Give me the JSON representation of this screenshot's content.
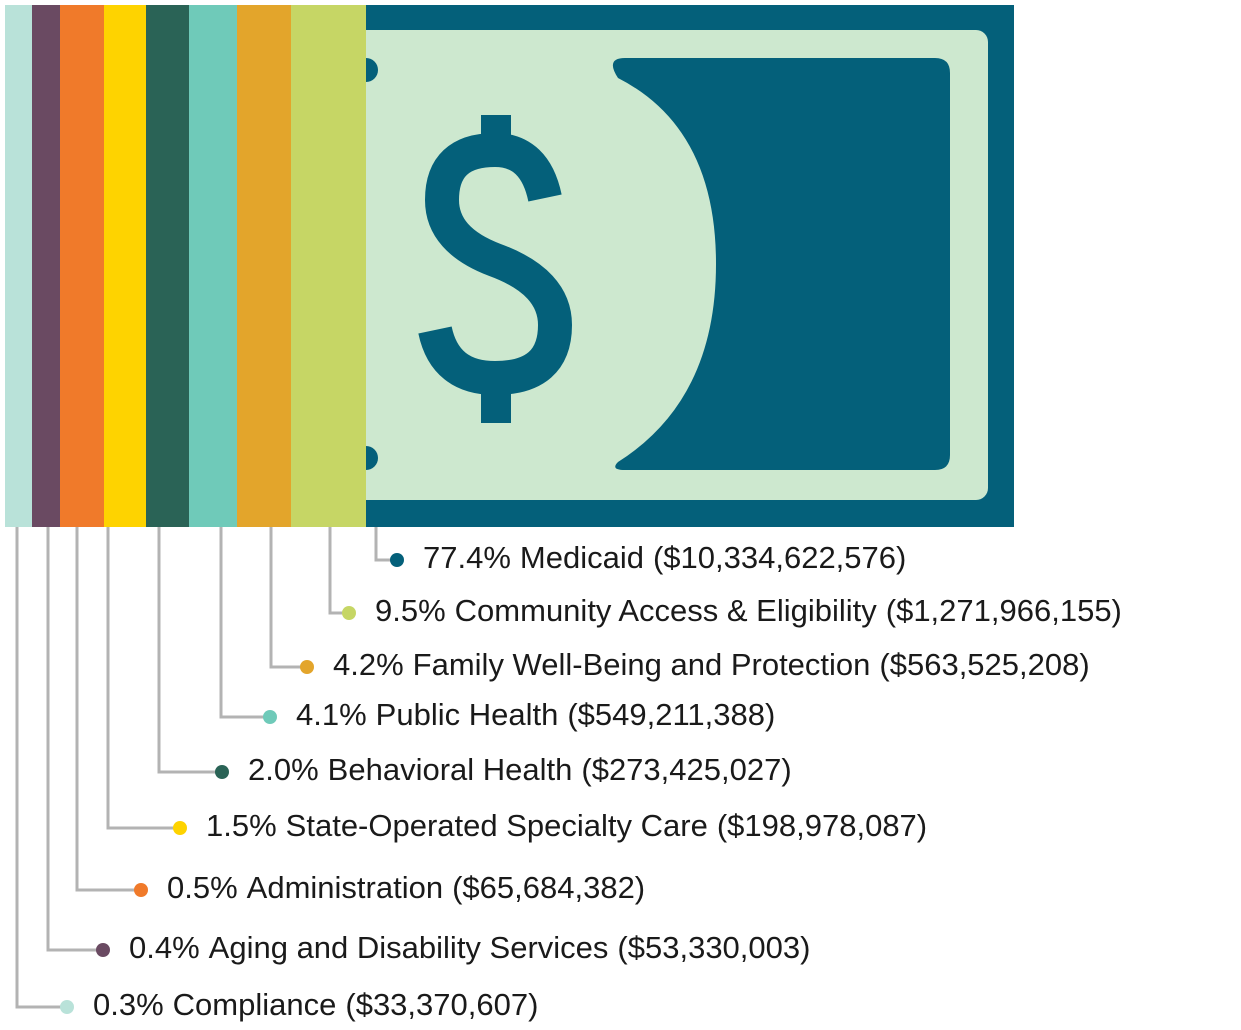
{
  "chart_data": {
    "type": "band",
    "categories": [
      "Medicaid",
      "Community Access & Eligibility",
      "Family Well-Being and Protection",
      "Public Health",
      "Behavioral Health",
      "State-Operated Specialty Care",
      "Administration",
      "Aging and Disability Services",
      "Compliance"
    ],
    "values": [
      77.4,
      9.5,
      4.2,
      4.1,
      2.0,
      1.5,
      0.5,
      0.4,
      0.3
    ],
    "value_labels": [
      "77.4%",
      "9.5%",
      "4.2%",
      "4.1%",
      "2.0%",
      "1.5%",
      "0.5%",
      "0.4%",
      "0.3%"
    ],
    "amounts": [
      10334622576,
      1271966155,
      563525208,
      549211388,
      273425027,
      198978087,
      65684382,
      53330003,
      33370607
    ],
    "amount_labels": [
      "($10,334,622,576)",
      "($1,271,966,155)",
      "($563,525,208)",
      "($549,211,388)",
      "($273,425,027)",
      "($198,978,087)",
      "($65,684,382)",
      "($53,330,003)",
      "($33,370,607)"
    ],
    "colors": [
      "#04607a",
      "#c6d665",
      "#e3a52b",
      "#6fcab9",
      "#2a6356",
      "#fed300",
      "#f07a2a",
      "#6a4a62",
      "#b9e2d9"
    ]
  }
}
